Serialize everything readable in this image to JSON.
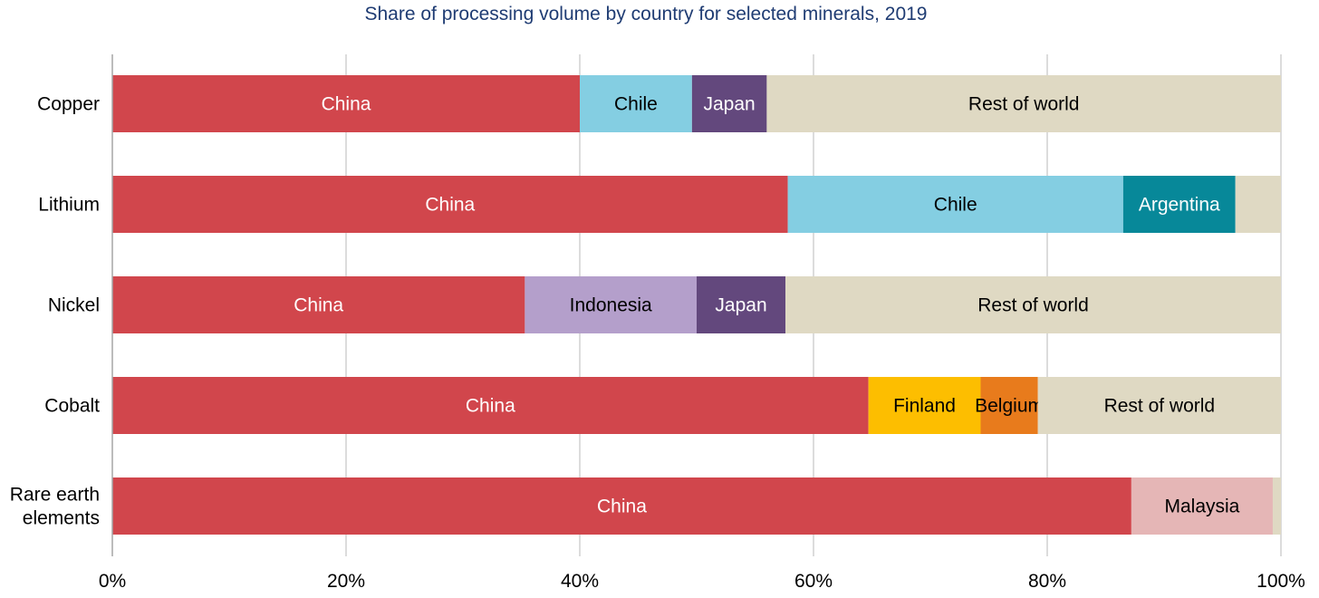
{
  "chart_data": {
    "type": "bar",
    "orientation": "horizontal",
    "stacked": true,
    "title": "Share of processing volume by country for selected minerals, 2019",
    "xlabel": "",
    "ylabel": "",
    "xlim": [
      0,
      100
    ],
    "x_ticks": [
      "0%",
      "20%",
      "40%",
      "60%",
      "80%",
      "100%"
    ],
    "grid": "vertical",
    "legend": "none (segments labeled inline)",
    "categories": [
      {
        "label": [
          "Copper"
        ],
        "segments": [
          {
            "name": "China",
            "value": 40,
            "color": "#d1464c",
            "text_color": "#ffffff",
            "label": "China"
          },
          {
            "name": "Chile",
            "value": 9.6,
            "color": "#84cee2",
            "text_color": "#000000",
            "label": "Chile"
          },
          {
            "name": "Japan",
            "value": 6.4,
            "color": "#63487d",
            "text_color": "#ffffff",
            "label": "Japan"
          },
          {
            "name": "Rest of world",
            "value": 44,
            "color": "#dfd9c3",
            "text_color": "#000000",
            "label": "Rest of world"
          }
        ]
      },
      {
        "label": [
          "Lithium"
        ],
        "segments": [
          {
            "name": "China",
            "value": 57.8,
            "color": "#d1464c",
            "text_color": "#ffffff",
            "label": "China"
          },
          {
            "name": "Chile",
            "value": 28.7,
            "color": "#84cee2",
            "text_color": "#000000",
            "label": "Chile"
          },
          {
            "name": "Argentina",
            "value": 9.6,
            "color": "#078899",
            "text_color": "#ffffff",
            "label": "Argentina"
          },
          {
            "name": "Rest of world",
            "value": 3.9,
            "color": "#dfd9c3",
            "text_color": "#000000",
            "label": ""
          }
        ]
      },
      {
        "label": [
          "Nickel"
        ],
        "segments": [
          {
            "name": "China",
            "value": 35.3,
            "color": "#d1464c",
            "text_color": "#ffffff",
            "label": "China"
          },
          {
            "name": "Indonesia",
            "value": 14.7,
            "color": "#b49fcb",
            "text_color": "#000000",
            "label": "Indonesia"
          },
          {
            "name": "Japan",
            "value": 7.6,
            "color": "#63487d",
            "text_color": "#ffffff",
            "label": "Japan"
          },
          {
            "name": "Rest of world",
            "value": 42.4,
            "color": "#dfd9c3",
            "text_color": "#000000",
            "label": "Rest of world"
          }
        ]
      },
      {
        "label": [
          "Cobalt"
        ],
        "segments": [
          {
            "name": "China",
            "value": 64.7,
            "color": "#d1464c",
            "text_color": "#ffffff",
            "label": "China"
          },
          {
            "name": "Finland",
            "value": 9.6,
            "color": "#fdbe00",
            "text_color": "#000000",
            "label": "Finland"
          },
          {
            "name": "Belgium",
            "value": 4.9,
            "color": "#e87b1c",
            "text_color": "#000000",
            "label": "Belgium"
          },
          {
            "name": "Rest of world",
            "value": 20.8,
            "color": "#dfd9c3",
            "text_color": "#000000",
            "label": "Rest of world"
          }
        ]
      },
      {
        "label": [
          "Rare earth",
          "elements"
        ],
        "segments": [
          {
            "name": "China",
            "value": 87.2,
            "color": "#d1464c",
            "text_color": "#ffffff",
            "label": "China"
          },
          {
            "name": "Malaysia",
            "value": 12.1,
            "color": "#e5b6b6",
            "text_color": "#000000",
            "label": "Malaysia"
          },
          {
            "name": "Rest of world",
            "value": 0.7,
            "color": "#dfd9c3",
            "text_color": "#000000",
            "label": ""
          }
        ]
      }
    ]
  },
  "colors": {
    "title": "#1f3c73",
    "gridline": "#d0d0d0",
    "axis": "#a6a6a6"
  }
}
